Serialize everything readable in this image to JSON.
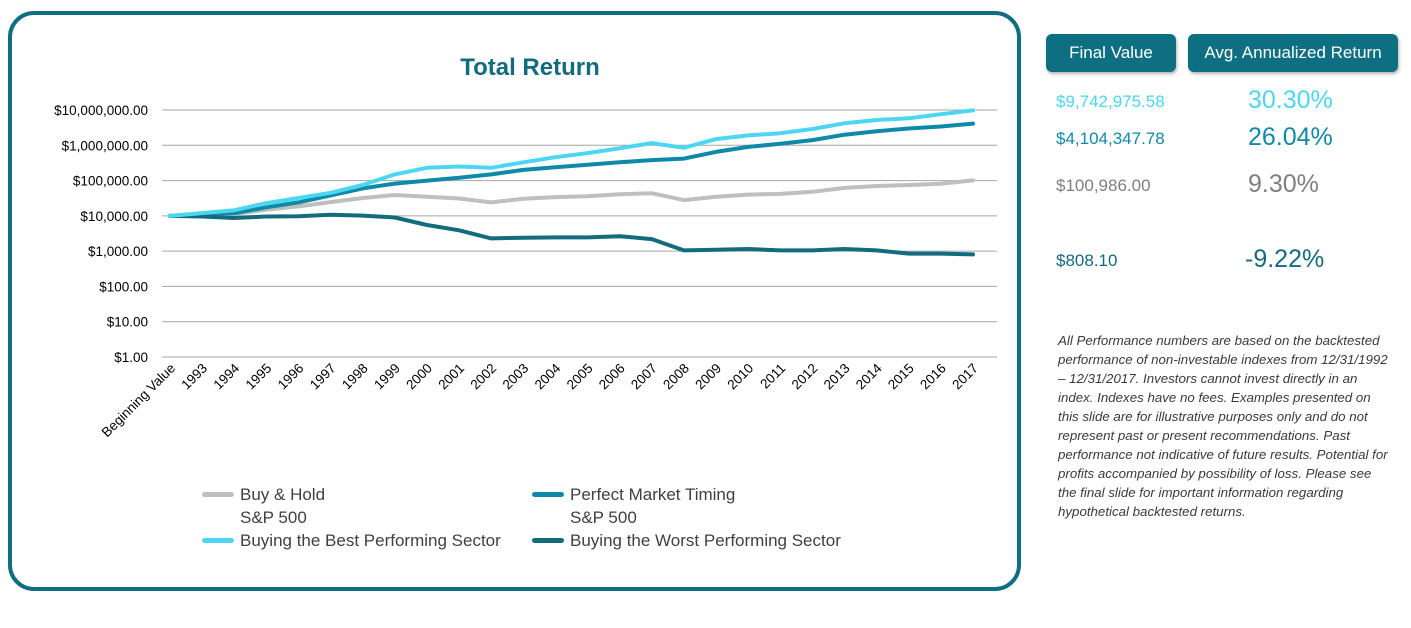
{
  "chart_data": {
    "type": "line",
    "title": "Total Return",
    "y_scale": "log",
    "ylim": [
      1,
      10000000
    ],
    "yticks": [
      "$10,000,000.00",
      "$1,000,000.00",
      "$100,000.00",
      "$10,000.00",
      "$1,000.00",
      "$100.00",
      "$10.00",
      "$1.00"
    ],
    "categories": [
      "Beginning Value",
      "1993",
      "1994",
      "1995",
      "1996",
      "1997",
      "1998",
      "1999",
      "2000",
      "2001",
      "2002",
      "2003",
      "2004",
      "2005",
      "2006",
      "2007",
      "2008",
      "2009",
      "2010",
      "2011",
      "2012",
      "2013",
      "2014",
      "2015",
      "2016",
      "2017"
    ],
    "series": [
      {
        "name": "Buy & Hold\nS&P 500",
        "color": "#bfbfbf",
        "values": [
          10000,
          11000,
          11200,
          15000,
          18500,
          24500,
          32000,
          39000,
          35000,
          31000,
          24000,
          30500,
          34000,
          36000,
          41000,
          44000,
          28000,
          35000,
          40000,
          42000,
          48000,
          62000,
          70000,
          75000,
          81000,
          100986
        ]
      },
      {
        "name": "Perfect Market Timing\nS&P 500",
        "color": "#0e8aa8",
        "values": [
          10000,
          11500,
          12000,
          17500,
          24000,
          38000,
          60000,
          82000,
          100000,
          120000,
          150000,
          200000,
          240000,
          280000,
          330000,
          380000,
          420000,
          650000,
          900000,
          1100000,
          1400000,
          2000000,
          2500000,
          3000000,
          3400000,
          4104347.78
        ]
      },
      {
        "name": "Buying the Best Performing Sector",
        "color": "#4dd6f2",
        "values": [
          10000,
          12000,
          14500,
          23000,
          32000,
          45000,
          75000,
          150000,
          230000,
          250000,
          230000,
          330000,
          460000,
          600000,
          820000,
          1150000,
          850000,
          1500000,
          1900000,
          2200000,
          2900000,
          4200000,
          5200000,
          5800000,
          7600000,
          9742975.58
        ]
      },
      {
        "name": "Buying the Worst Performing Sector",
        "color": "#136b7d",
        "values": [
          10000,
          9600,
          8700,
          9600,
          9800,
          10800,
          10200,
          9000,
          5500,
          3900,
          2300,
          2400,
          2450,
          2450,
          2650,
          2200,
          1050,
          1100,
          1150,
          1050,
          1050,
          1150,
          1050,
          850,
          850,
          808.1
        ]
      }
    ],
    "grid": true,
    "legend_position": "bottom"
  },
  "summary": {
    "headers": {
      "final_value": "Final Value",
      "annualized_return": "Avg. Annualized Return"
    },
    "rows": [
      {
        "final_value": "$9,742,975.58",
        "annualized_return": "30.30%",
        "color": "#4dd6f2"
      },
      {
        "final_value": "$4,104,347.78",
        "annualized_return": "26.04%",
        "color": "#0e8aa8"
      },
      {
        "final_value": "$100,986.00",
        "annualized_return": "9.30%",
        "color": "#7f7f7f"
      },
      {
        "final_value": "$808.10",
        "annualized_return": "-9.22%",
        "color": "#136b7d"
      }
    ]
  },
  "disclaimer": "All Performance numbers are based on the backtested performance of non-investable indexes from 12/31/1992 – 12/31/2017.  Investors cannot invest directly in an index. Indexes have no fees. Examples presented on this slide are for illustrative purposes only and do not represent past or present recommendations.  Past performance not indicative of future results.  Potential for profits accompanied by possibility of loss. Please see the final slide for important information regarding hypothetical backtested returns.",
  "colors": {
    "accent": "#0e6f82",
    "grid": "#a6a6a6",
    "tick_text": "#000000"
  }
}
